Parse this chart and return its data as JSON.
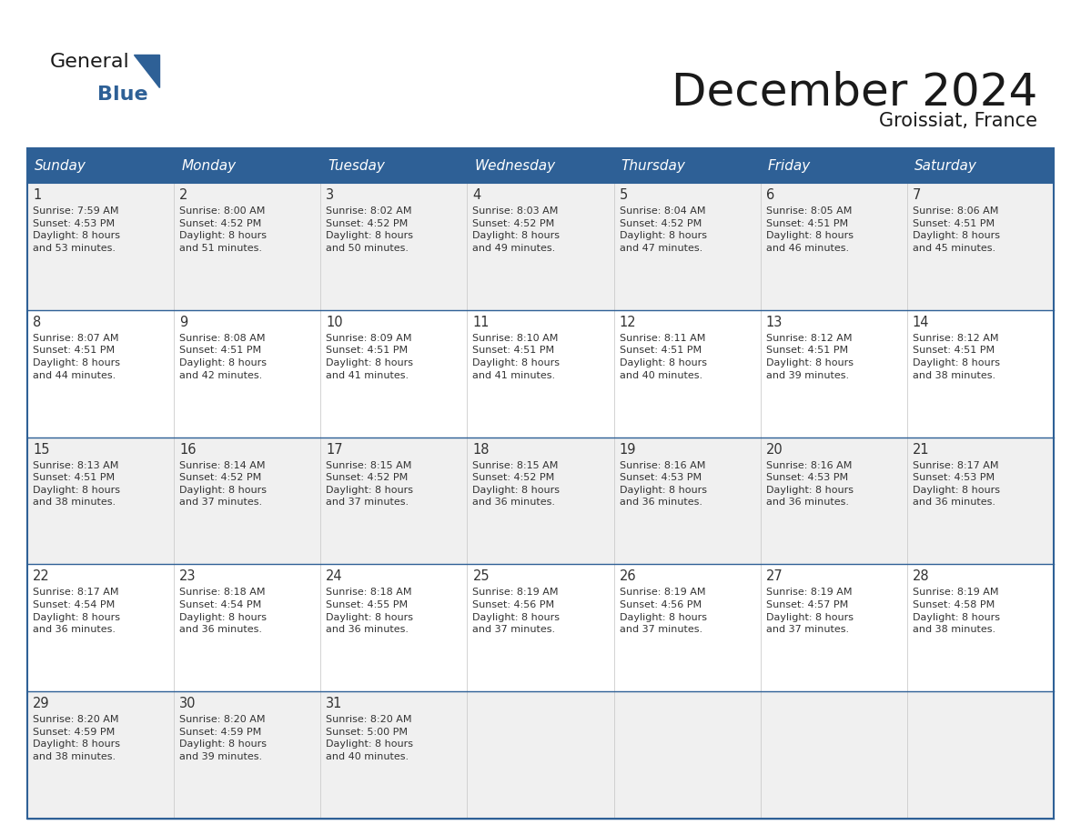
{
  "title": "December 2024",
  "subtitle": "Groissiat, France",
  "days_of_week": [
    "Sunday",
    "Monday",
    "Tuesday",
    "Wednesday",
    "Thursday",
    "Friday",
    "Saturday"
  ],
  "header_bg": "#2E6096",
  "header_text_color": "#FFFFFF",
  "row_bg_light": "#F0F0F0",
  "row_bg_white": "#FFFFFF",
  "border_color": "#2E6096",
  "cell_border_color": "#AAAAAA",
  "text_color": "#333333",
  "title_color": "#1a1a1a",
  "logo_general_color": "#1a1a1a",
  "logo_blue_color": "#2E6096",
  "logo_triangle_color": "#2E6096",
  "calendar_data": [
    [
      {
        "day": 1,
        "sunrise": "7:59 AM",
        "sunset": "4:53 PM",
        "daylight": "8 hours and 53 minutes."
      },
      {
        "day": 2,
        "sunrise": "8:00 AM",
        "sunset": "4:52 PM",
        "daylight": "8 hours and 51 minutes."
      },
      {
        "day": 3,
        "sunrise": "8:02 AM",
        "sunset": "4:52 PM",
        "daylight": "8 hours and 50 minutes."
      },
      {
        "day": 4,
        "sunrise": "8:03 AM",
        "sunset": "4:52 PM",
        "daylight": "8 hours and 49 minutes."
      },
      {
        "day": 5,
        "sunrise": "8:04 AM",
        "sunset": "4:52 PM",
        "daylight": "8 hours and 47 minutes."
      },
      {
        "day": 6,
        "sunrise": "8:05 AM",
        "sunset": "4:51 PM",
        "daylight": "8 hours and 46 minutes."
      },
      {
        "day": 7,
        "sunrise": "8:06 AM",
        "sunset": "4:51 PM",
        "daylight": "8 hours and 45 minutes."
      }
    ],
    [
      {
        "day": 8,
        "sunrise": "8:07 AM",
        "sunset": "4:51 PM",
        "daylight": "8 hours and 44 minutes."
      },
      {
        "day": 9,
        "sunrise": "8:08 AM",
        "sunset": "4:51 PM",
        "daylight": "8 hours and 42 minutes."
      },
      {
        "day": 10,
        "sunrise": "8:09 AM",
        "sunset": "4:51 PM",
        "daylight": "8 hours and 41 minutes."
      },
      {
        "day": 11,
        "sunrise": "8:10 AM",
        "sunset": "4:51 PM",
        "daylight": "8 hours and 41 minutes."
      },
      {
        "day": 12,
        "sunrise": "8:11 AM",
        "sunset": "4:51 PM",
        "daylight": "8 hours and 40 minutes."
      },
      {
        "day": 13,
        "sunrise": "8:12 AM",
        "sunset": "4:51 PM",
        "daylight": "8 hours and 39 minutes."
      },
      {
        "day": 14,
        "sunrise": "8:12 AM",
        "sunset": "4:51 PM",
        "daylight": "8 hours and 38 minutes."
      }
    ],
    [
      {
        "day": 15,
        "sunrise": "8:13 AM",
        "sunset": "4:51 PM",
        "daylight": "8 hours and 38 minutes."
      },
      {
        "day": 16,
        "sunrise": "8:14 AM",
        "sunset": "4:52 PM",
        "daylight": "8 hours and 37 minutes."
      },
      {
        "day": 17,
        "sunrise": "8:15 AM",
        "sunset": "4:52 PM",
        "daylight": "8 hours and 37 minutes."
      },
      {
        "day": 18,
        "sunrise": "8:15 AM",
        "sunset": "4:52 PM",
        "daylight": "8 hours and 36 minutes."
      },
      {
        "day": 19,
        "sunrise": "8:16 AM",
        "sunset": "4:53 PM",
        "daylight": "8 hours and 36 minutes."
      },
      {
        "day": 20,
        "sunrise": "8:16 AM",
        "sunset": "4:53 PM",
        "daylight": "8 hours and 36 minutes."
      },
      {
        "day": 21,
        "sunrise": "8:17 AM",
        "sunset": "4:53 PM",
        "daylight": "8 hours and 36 minutes."
      }
    ],
    [
      {
        "day": 22,
        "sunrise": "8:17 AM",
        "sunset": "4:54 PM",
        "daylight": "8 hours and 36 minutes."
      },
      {
        "day": 23,
        "sunrise": "8:18 AM",
        "sunset": "4:54 PM",
        "daylight": "8 hours and 36 minutes."
      },
      {
        "day": 24,
        "sunrise": "8:18 AM",
        "sunset": "4:55 PM",
        "daylight": "8 hours and 36 minutes."
      },
      {
        "day": 25,
        "sunrise": "8:19 AM",
        "sunset": "4:56 PM",
        "daylight": "8 hours and 37 minutes."
      },
      {
        "day": 26,
        "sunrise": "8:19 AM",
        "sunset": "4:56 PM",
        "daylight": "8 hours and 37 minutes."
      },
      {
        "day": 27,
        "sunrise": "8:19 AM",
        "sunset": "4:57 PM",
        "daylight": "8 hours and 37 minutes."
      },
      {
        "day": 28,
        "sunrise": "8:19 AM",
        "sunset": "4:58 PM",
        "daylight": "8 hours and 38 minutes."
      }
    ],
    [
      {
        "day": 29,
        "sunrise": "8:20 AM",
        "sunset": "4:59 PM",
        "daylight": "8 hours and 38 minutes."
      },
      {
        "day": 30,
        "sunrise": "8:20 AM",
        "sunset": "4:59 PM",
        "daylight": "8 hours and 39 minutes."
      },
      {
        "day": 31,
        "sunrise": "8:20 AM",
        "sunset": "5:00 PM",
        "daylight": "8 hours and 40 minutes."
      },
      null,
      null,
      null,
      null
    ]
  ]
}
